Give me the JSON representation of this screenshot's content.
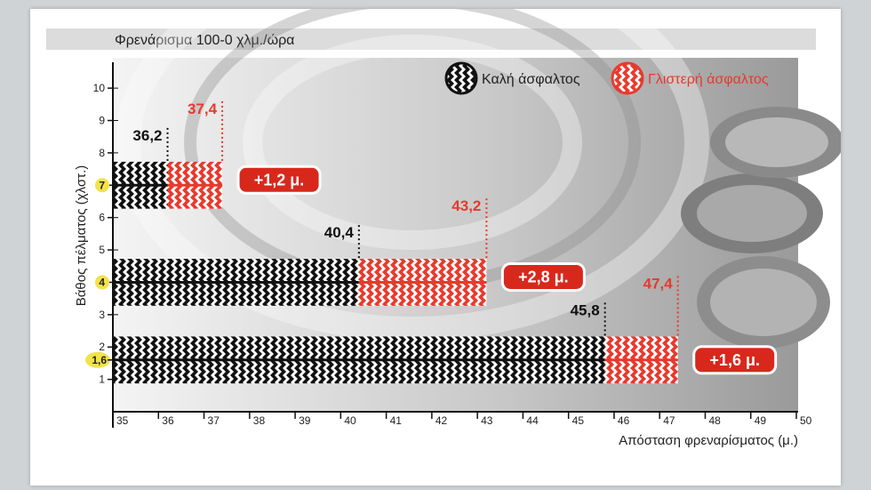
{
  "chart_data": {
    "type": "bar",
    "title": "Φρενάρισμα 100-0 χλμ./ώρα",
    "xlabel": "Απόσταση φρεναρίσματος (μ.)",
    "ylabel": "Βάθος πέλματος (χλστ.)",
    "xlim": [
      35,
      50
    ],
    "ylim": [
      0,
      10.8
    ],
    "x_ticks": [
      "35",
      "36",
      "37",
      "38",
      "39",
      "40",
      "41",
      "42",
      "43",
      "44",
      "45",
      "46",
      "47",
      "48",
      "49",
      "50"
    ],
    "y_ticks": [
      "1",
      "2",
      "3",
      "4",
      "5",
      "6",
      "7",
      "8",
      "9",
      "10"
    ],
    "highlighted_y_ticks": [
      "7",
      "4",
      "1,6"
    ],
    "legend": {
      "position": "top-right"
    },
    "colors": {
      "dry": "#111111",
      "wet": "#e8392d",
      "badge": "#d8281c",
      "highlight": "#f2e34a"
    },
    "series": [
      {
        "name": "Καλή άσφαλτος",
        "color": "#111111"
      },
      {
        "name": "Γλιστερή άσφαλτος",
        "color": "#e8392d"
      }
    ],
    "bars": [
      {
        "tread_depth": 7,
        "tread_label": "7",
        "dry_distance": 36.2,
        "dry_label": "36,2",
        "wet_distance": 37.4,
        "wet_label": "37,4",
        "difference": "+1,2 μ."
      },
      {
        "tread_depth": 4,
        "tread_label": "4",
        "dry_distance": 40.4,
        "dry_label": "40,4",
        "wet_distance": 43.2,
        "wet_label": "43,2",
        "difference": "+2,8 μ."
      },
      {
        "tread_depth": 1.6,
        "tread_label": "1,6",
        "dry_distance": 45.8,
        "dry_label": "45,8",
        "wet_distance": 47.4,
        "wet_label": "47,4",
        "difference": "+1,6 μ."
      }
    ]
  }
}
